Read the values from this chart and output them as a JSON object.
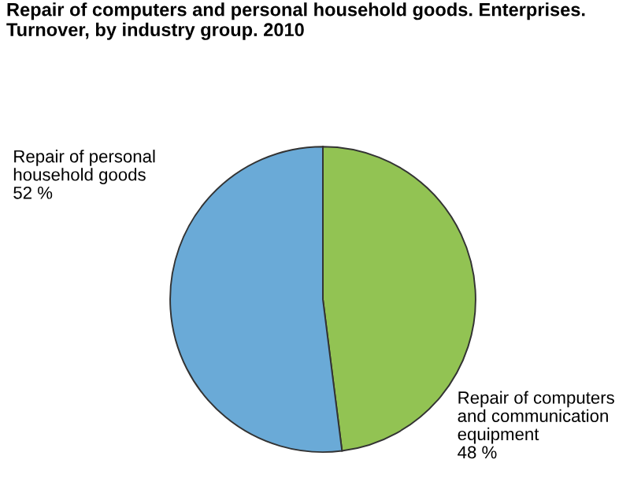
{
  "chart_data": {
    "type": "pie",
    "title": "Repair of computers and personal household goods. Enterprises.\nTurnover, by industry group. 2010",
    "categories": [
      "Repair of computers\nand communication\nequipment",
      "Repair of personal\nhousehold goods"
    ],
    "values": [
      48,
      52
    ],
    "colors": [
      "#92c353",
      "#6aaad7"
    ],
    "value_labels": [
      "48 %",
      "52 %"
    ]
  }
}
